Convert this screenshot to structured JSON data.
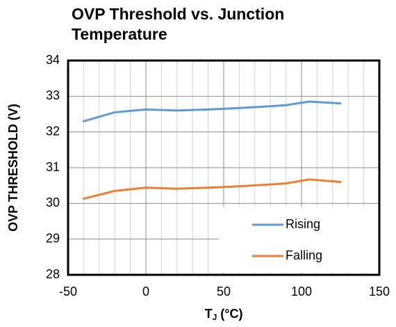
{
  "chart_data": {
    "type": "line",
    "title": "OVP Threshold vs. Junction Temperature",
    "y_label": "OVP THRESHOLD (V)",
    "x_label": {
      "main": "T",
      "sub": "J",
      "unit": " (°C)"
    },
    "x": [
      -40,
      -20,
      0,
      20,
      40,
      60,
      80,
      90,
      105,
      125
    ],
    "series": [
      {
        "name": "Rising",
        "color": "#5b9bd5",
        "values": [
          32.3,
          32.55,
          32.63,
          32.6,
          32.63,
          32.67,
          32.72,
          32.75,
          32.85,
          32.8
        ]
      },
      {
        "name": "Falling",
        "color": "#ed7d31",
        "values": [
          30.13,
          30.35,
          30.44,
          30.41,
          30.44,
          30.48,
          30.53,
          30.56,
          30.67,
          30.6
        ]
      }
    ],
    "xlim": [
      -50,
      150
    ],
    "xticks": [
      -50,
      0,
      50,
      100,
      150
    ],
    "ylim": [
      28,
      34
    ],
    "yticks": [
      28,
      29,
      30,
      31,
      32,
      33,
      34
    ],
    "grid": true,
    "minor_grid_step": 10,
    "legend": "lower right"
  }
}
